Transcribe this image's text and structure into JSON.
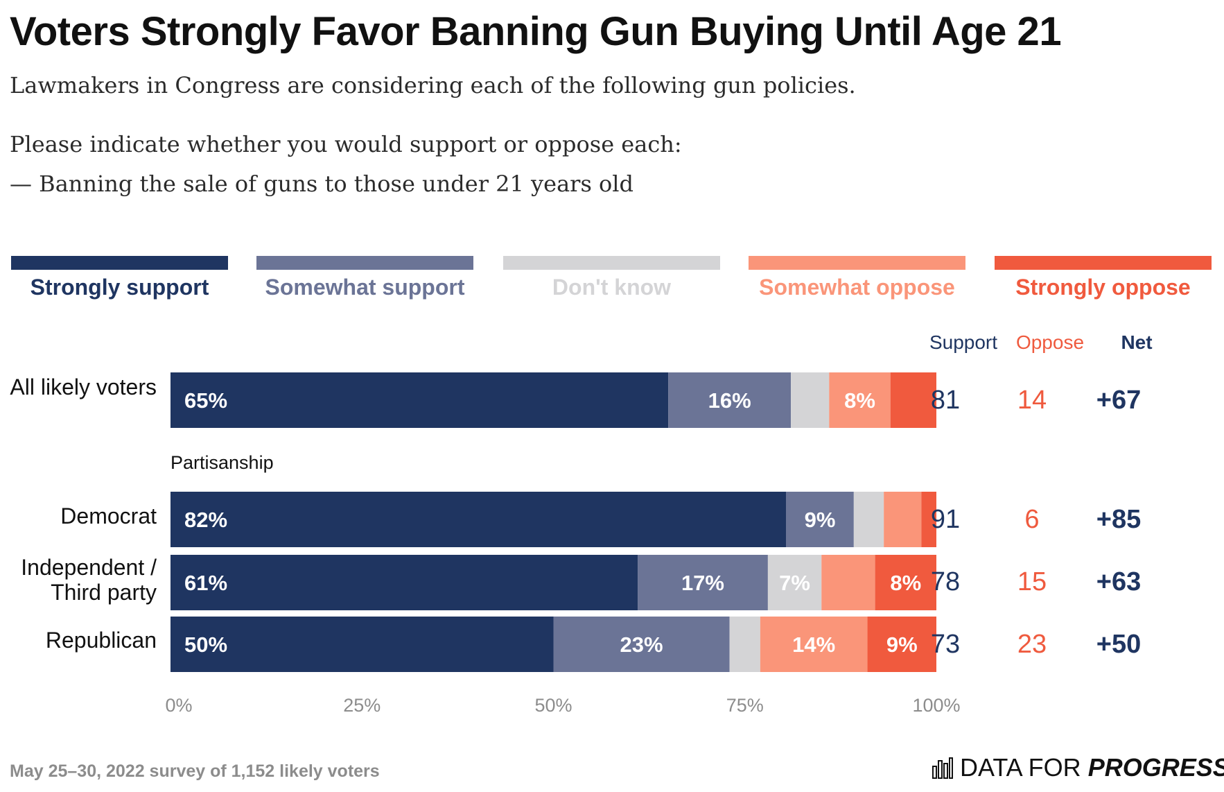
{
  "title": "Voters Strongly Favor Banning Gun Buying Until Age 21",
  "subtitle": {
    "line1": "Lawmakers in Congress are considering each of the following gun policies.",
    "line2": "Please indicate whether you would support or oppose each:",
    "line3": "— Banning the sale of guns to those under 21 years old"
  },
  "columns": {
    "support": "Support",
    "oppose": "Oppose",
    "net": "Net"
  },
  "section_label": "Partisanship",
  "footer": "May 25–30, 2022 survey of 1,152 likely voters",
  "brand": {
    "part1": "DATA FOR ",
    "part2": "PROGRESS"
  },
  "colors": {
    "strongly_support": "#1f3561",
    "somewhat_support": "#6b7496",
    "dont_know": "#d4d4d6",
    "somewhat_oppose": "#fa9579",
    "strongly_oppose": "#f05a3e",
    "support_text": "#1f3561",
    "oppose_text": "#ef5a3e"
  },
  "legend": [
    {
      "label": "Strongly support",
      "key": "strongly_support"
    },
    {
      "label": "Somewhat support",
      "key": "somewhat_support"
    },
    {
      "label": "Don't know",
      "key": "dont_know"
    },
    {
      "label": "Somewhat oppose",
      "key": "somewhat_oppose"
    },
    {
      "label": "Strongly oppose",
      "key": "strongly_oppose"
    }
  ],
  "chart_data": {
    "type": "bar",
    "orientation": "horizontal",
    "stacked": true,
    "title": "Voters Strongly Favor Banning Gun Buying Until Age 21",
    "xlim": [
      0,
      100
    ],
    "x_ticks": [
      "0%",
      "25%",
      "50%",
      "75%",
      "100%"
    ],
    "categories": [
      "All likely voters",
      "Democrat",
      "Independent / Third party",
      "Republican"
    ],
    "series": [
      {
        "name": "Strongly support",
        "values": [
          65,
          82,
          61,
          50
        ],
        "labels": [
          "65%",
          "82%",
          "61%",
          "50%"
        ]
      },
      {
        "name": "Somewhat support",
        "values": [
          16,
          9,
          17,
          23
        ],
        "labels": [
          "16%",
          "9%",
          "17%",
          "23%"
        ]
      },
      {
        "name": "Don't know",
        "values": [
          5,
          4,
          7,
          4
        ],
        "labels": [
          "",
          "",
          "7%",
          ""
        ]
      },
      {
        "name": "Somewhat oppose",
        "values": [
          8,
          5,
          7,
          14
        ],
        "labels": [
          "8%",
          "",
          "",
          "14%"
        ]
      },
      {
        "name": "Strongly oppose",
        "values": [
          6,
          2,
          8,
          9
        ],
        "labels": [
          "",
          "",
          "8%",
          "9%"
        ]
      }
    ],
    "totals": {
      "support": [
        "81",
        "91",
        "78",
        "73"
      ],
      "oppose": [
        "14",
        "6",
        "15",
        "23"
      ],
      "net": [
        "+67",
        "+85",
        "+63",
        "+50"
      ]
    }
  }
}
